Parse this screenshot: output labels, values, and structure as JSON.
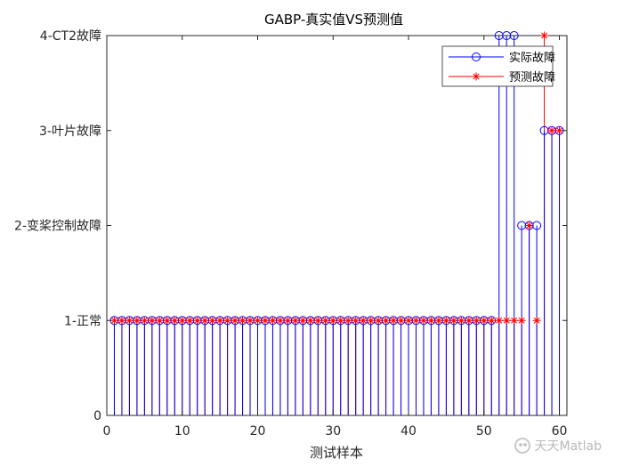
{
  "chart_data": {
    "type": "stem",
    "title": "GABP-真实值VS预测值",
    "xlabel": "测试样本",
    "ylabel": "",
    "xlim": [
      0,
      61
    ],
    "ylim": [
      0,
      4
    ],
    "xticks": [
      0,
      10,
      20,
      30,
      40,
      50,
      60
    ],
    "yticks": [
      {
        "value": 0,
        "label": "0"
      },
      {
        "value": 1,
        "label": "1-正常"
      },
      {
        "value": 2,
        "label": "2-变桨控制故障"
      },
      {
        "value": 3,
        "label": "3-叶片故障"
      },
      {
        "value": 4,
        "label": "4-CT2故障"
      }
    ],
    "x": [
      1,
      2,
      3,
      4,
      5,
      6,
      7,
      8,
      9,
      10,
      11,
      12,
      13,
      14,
      15,
      16,
      17,
      18,
      19,
      20,
      21,
      22,
      23,
      24,
      25,
      26,
      27,
      28,
      29,
      30,
      31,
      32,
      33,
      34,
      35,
      36,
      37,
      38,
      39,
      40,
      41,
      42,
      43,
      44,
      45,
      46,
      47,
      48,
      49,
      50,
      51,
      52,
      53,
      54,
      55,
      56,
      57,
      58,
      59,
      60
    ],
    "series": [
      {
        "name": "实际故障",
        "color": "#0000ff",
        "marker": "circle",
        "values": [
          1,
          1,
          1,
          1,
          1,
          1,
          1,
          1,
          1,
          1,
          1,
          1,
          1,
          1,
          1,
          1,
          1,
          1,
          1,
          1,
          1,
          1,
          1,
          1,
          1,
          1,
          1,
          1,
          1,
          1,
          1,
          1,
          1,
          1,
          1,
          1,
          1,
          1,
          1,
          1,
          1,
          1,
          1,
          1,
          1,
          1,
          1,
          1,
          1,
          1,
          1,
          4,
          4,
          4,
          2,
          2,
          2,
          3,
          3,
          3
        ]
      },
      {
        "name": "预测故障",
        "color": "#ff0000",
        "marker": "star",
        "values": [
          1,
          1,
          1,
          1,
          1,
          1,
          1,
          1,
          1,
          1,
          1,
          1,
          1,
          1,
          1,
          1,
          1,
          1,
          1,
          1,
          1,
          1,
          1,
          1,
          1,
          1,
          1,
          1,
          1,
          1,
          1,
          1,
          1,
          1,
          1,
          1,
          1,
          1,
          1,
          1,
          1,
          1,
          1,
          1,
          1,
          1,
          1,
          1,
          1,
          1,
          1,
          1,
          1,
          1,
          1,
          2,
          1,
          4,
          3,
          3
        ]
      }
    ],
    "legend_position": "top-right",
    "grid": false
  },
  "watermark": {
    "text": "天天Matlab",
    "icon": "wechat-icon"
  }
}
